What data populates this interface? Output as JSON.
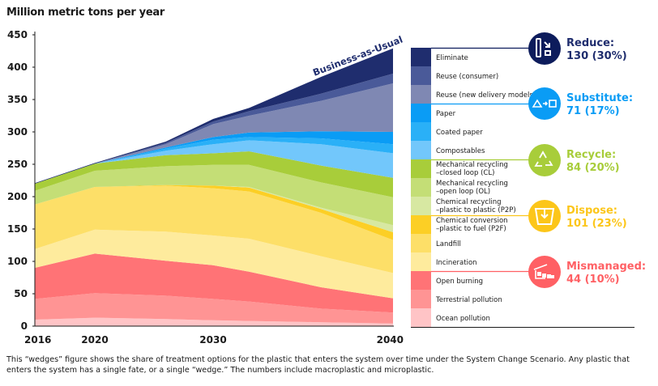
{
  "chart_data": {
    "type": "area",
    "stacked": true,
    "title": "Million metric tons per year",
    "ylim": [
      0,
      450
    ],
    "yticks": [
      0,
      50,
      100,
      150,
      200,
      250,
      300,
      350,
      400,
      450
    ],
    "xticks": [
      2016,
      2020,
      2030,
      2040
    ],
    "x": [
      2016,
      2020,
      2026,
      2030,
      2032,
      2036,
      2040
    ],
    "annotation": "Business-as-Usual",
    "series": [
      {
        "name": "Ocean pollution",
        "color": "#ffc4c6",
        "values": [
          10,
          13,
          11,
          9,
          8,
          6,
          4
        ]
      },
      {
        "name": "Terrestrial pollution",
        "color": "#ff9494",
        "values": [
          32,
          38,
          36,
          33,
          30,
          21,
          17
        ]
      },
      {
        "name": "Open burning",
        "color": "#ff7376",
        "values": [
          48,
          61,
          54,
          52,
          46,
          33,
          22
        ]
      },
      {
        "name": "Incineration",
        "color": "#feeb9d",
        "values": [
          29,
          37,
          45,
          46,
          51,
          48,
          39
        ]
      },
      {
        "name": "Landfill",
        "color": "#fddf68",
        "values": [
          69,
          66,
          71,
          73,
          73,
          67,
          51
        ]
      },
      {
        "name": "Chemical conversion\n–plastic to fuel (P2F)",
        "color": "#fccf25",
        "values": [
          0,
          0,
          1,
          4,
          6,
          6,
          12
        ]
      },
      {
        "name": "Chemical recycling\n–plastic to plastic (P2P)",
        "color": "#d7e8a2",
        "values": [
          0,
          0,
          0,
          0,
          1,
          2,
          11
        ]
      },
      {
        "name": "Mechanical recycling\n–open loop (OL)",
        "color": "#c4de76",
        "values": [
          21,
          25,
          29,
          32,
          34,
          39,
          43
        ]
      },
      {
        "name": "Mechanical recycling\n–closed loop (CL)",
        "color": "#a8cd3a",
        "values": [
          11,
          11,
          17,
          18,
          21,
          26,
          30
        ]
      },
      {
        "name": "Compostables",
        "color": "#72c7fb",
        "values": [
          0,
          0,
          7,
          14,
          17,
          33,
          38
        ]
      },
      {
        "name": "Coated paper",
        "color": "#2ab0f7",
        "values": [
          0,
          0,
          3,
          7,
          5,
          9,
          14
        ]
      },
      {
        "name": "Paper",
        "color": "#0a9cf5",
        "values": [
          0,
          0,
          2,
          4,
          7,
          11,
          19
        ]
      },
      {
        "name": "Reuse (new delivery models)",
        "color": "#7f88b3",
        "values": [
          0,
          0,
          5,
          20,
          26,
          47,
          75
        ]
      },
      {
        "name": "Reuse (consumer)",
        "color": "#4a5a99",
        "values": [
          0,
          0,
          2,
          4,
          7,
          11,
          15
        ]
      },
      {
        "name": "Eliminate",
        "color": "#1f2d6e",
        "values": [
          1,
          1,
          2,
          4,
          5,
          26,
          39
        ]
      }
    ],
    "groups": [
      {
        "label": "Reduce:",
        "value": "130 (30%)",
        "color": "#0d1c5c",
        "text_color": "#1f2d6e",
        "icon": "reduce-icon"
      },
      {
        "label": "Substitute:",
        "value": "71 (17%)",
        "color": "#0a9cf5",
        "text_color": "#0a9cf5",
        "icon": "substitute-icon"
      },
      {
        "label": "Recycle:",
        "value": "84 (20%)",
        "color": "#a8cd3a",
        "text_color": "#a8cd3a",
        "icon": "recycle-icon"
      },
      {
        "label": "Dispose:",
        "value": "101 (23%)",
        "color": "#fcc61a",
        "text_color": "#fcc61a",
        "icon": "bin-icon"
      },
      {
        "label": "Mismanaged:",
        "value": "44 (10%)",
        "color": "#ff6064",
        "text_color": "#ff6064",
        "icon": "dumping-icon"
      }
    ]
  },
  "footnote": "This “wedges” figure shows the share of treatment options for the plastic that enters the system over time under the System Change Scenario. Any plastic that enters the system has a single fate, or a single “wedge.” The numbers include macroplastic and microplastic."
}
